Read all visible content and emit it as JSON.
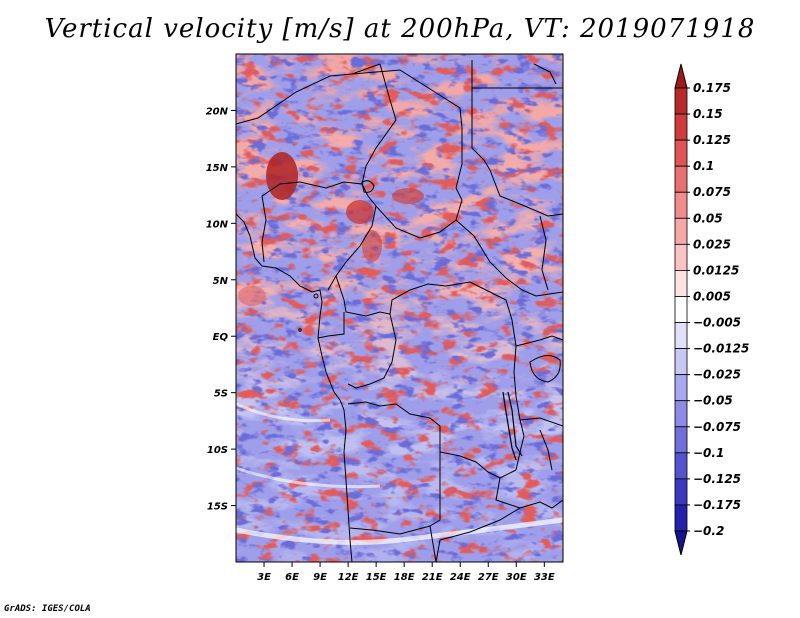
{
  "title": "Vertical velocity [m/s] at 200hPa, VT: 2019071918",
  "credit": "GrADS: IGES/COLA",
  "map": {
    "lon_range": [
      0,
      35
    ],
    "lat_range": [
      -20,
      25
    ],
    "lat_ticks": [
      {
        "value": 20,
        "label": "20N"
      },
      {
        "value": 15,
        "label": "15N"
      },
      {
        "value": 10,
        "label": "10N"
      },
      {
        "value": 5,
        "label": "5N"
      },
      {
        "value": 0,
        "label": "EQ"
      },
      {
        "value": -5,
        "label": "5S"
      },
      {
        "value": -10,
        "label": "10S"
      },
      {
        "value": -15,
        "label": "15S"
      }
    ],
    "lon_ticks": [
      {
        "value": 3,
        "label": "3E"
      },
      {
        "value": 6,
        "label": "6E"
      },
      {
        "value": 9,
        "label": "9E"
      },
      {
        "value": 12,
        "label": "12E"
      },
      {
        "value": 15,
        "label": "15E"
      },
      {
        "value": 18,
        "label": "18E"
      },
      {
        "value": 21,
        "label": "21E"
      },
      {
        "value": 24,
        "label": "24E"
      },
      {
        "value": 27,
        "label": "27E"
      },
      {
        "value": 30,
        "label": "30E"
      },
      {
        "value": 33,
        "label": "33E"
      }
    ]
  },
  "colorbar": {
    "levels": [
      "0.175",
      "0.15",
      "0.125",
      "0.1",
      "0.075",
      "0.05",
      "0.025",
      "0.0125",
      "0.005",
      "−0.005",
      "−0.0125",
      "−0.025",
      "−0.05",
      "−0.075",
      "−0.1",
      "−0.125",
      "−0.175",
      "−0.2"
    ],
    "colors": [
      "#a01818",
      "#b82a2a",
      "#d03c3c",
      "#e05454",
      "#e87070",
      "#f08c8c",
      "#f5a8a8",
      "#fac4c4",
      "#fde2e2",
      "#ffffff",
      "#e0e0fa",
      "#c8c8f4",
      "#a8a8ee",
      "#8c8ce6",
      "#7070dc",
      "#5454d0",
      "#3a3ac0",
      "#2222aa",
      "#14148c"
    ]
  }
}
